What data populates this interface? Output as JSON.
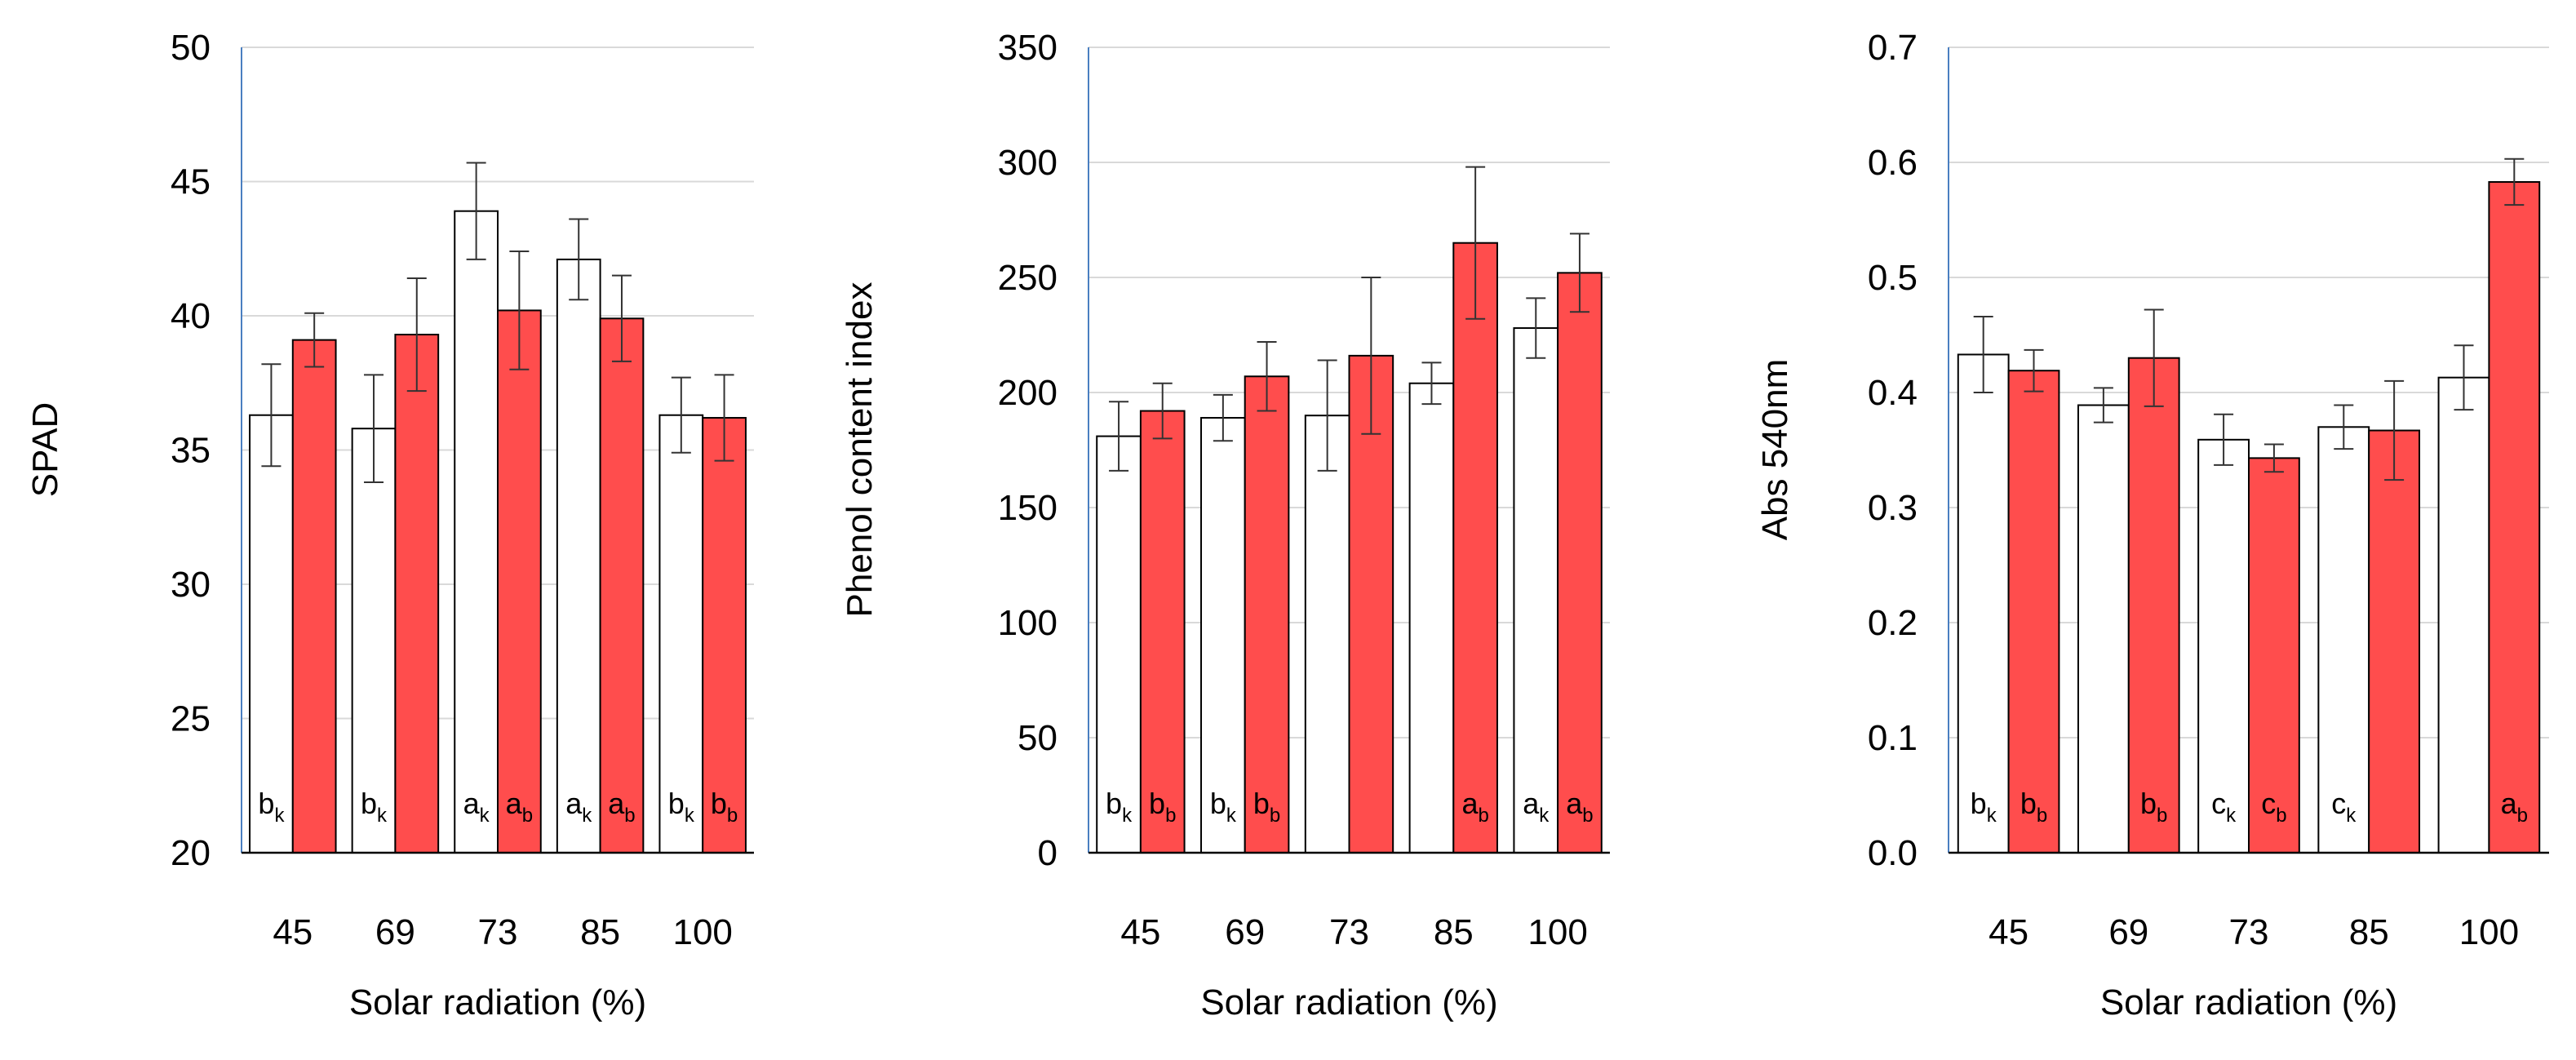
{
  "chart_data": [
    {
      "type": "bar",
      "title": "",
      "xlabel": "Solar radiation (%)",
      "ylabel": "SPAD",
      "ylim": [
        20,
        50
      ],
      "yticks": [
        "20",
        "25",
        "30",
        "35",
        "40",
        "45",
        "50"
      ],
      "grid": true,
      "categories": [
        "45",
        "69",
        "73",
        "85",
        "100"
      ],
      "series": [
        {
          "name": "white",
          "color": "#ffffff",
          "values": [
            36.3,
            35.8,
            43.9,
            42.1,
            36.3
          ],
          "errors": [
            1.9,
            2.0,
            1.8,
            1.5,
            1.4
          ],
          "letters": [
            [
              "b",
              "k"
            ],
            [
              "b",
              "k"
            ],
            [
              "a",
              "k"
            ],
            [
              "a",
              "k"
            ],
            [
              "b",
              "k"
            ]
          ]
        },
        {
          "name": "red",
          "color": "#ff4d4d",
          "values": [
            39.1,
            39.3,
            40.2,
            39.9,
            36.2
          ],
          "errors": [
            1.0,
            2.1,
            2.2,
            1.6,
            1.6
          ],
          "letters": [
            null,
            null,
            [
              "a",
              "b"
            ],
            [
              "a",
              "b"
            ],
            [
              "b",
              "b"
            ]
          ]
        }
      ]
    },
    {
      "type": "bar",
      "title": "",
      "xlabel": "Solar radiation (%)",
      "ylabel": "Phenol content index",
      "ylim": [
        0,
        350
      ],
      "yticks": [
        "0",
        "50",
        "100",
        "150",
        "200",
        "250",
        "300",
        "350"
      ],
      "grid": true,
      "categories": [
        "45",
        "69",
        "73",
        "85",
        "100"
      ],
      "series": [
        {
          "name": "white",
          "color": "#ffffff",
          "values": [
            181,
            189,
            190,
            204,
            228
          ],
          "errors": [
            15,
            10,
            24,
            9,
            13
          ],
          "letters": [
            [
              "b",
              "k"
            ],
            [
              "b",
              "k"
            ],
            null,
            null,
            [
              "a",
              "k"
            ]
          ]
        },
        {
          "name": "red",
          "color": "#ff4d4d",
          "values": [
            192,
            207,
            216,
            265,
            252
          ],
          "errors": [
            12,
            15,
            34,
            33,
            17
          ],
          "letters": [
            [
              "b",
              "b"
            ],
            [
              "b",
              "b"
            ],
            null,
            [
              "a",
              "b"
            ],
            [
              "a",
              "b"
            ]
          ]
        }
      ]
    },
    {
      "type": "bar",
      "title": "",
      "xlabel": "Solar radiation (%)",
      "ylabel": "Abs 540nm",
      "ylim": [
        0,
        0.7
      ],
      "yticks": [
        "0.0",
        "0.1",
        "0.2",
        "0.3",
        "0.4",
        "0.5",
        "0.6",
        "0.7"
      ],
      "grid": true,
      "categories": [
        "45",
        "69",
        "73",
        "85",
        "100"
      ],
      "series": [
        {
          "name": "white",
          "color": "#ffffff",
          "values": [
            0.433,
            0.389,
            0.359,
            0.37,
            0.413
          ],
          "errors": [
            0.033,
            0.015,
            0.022,
            0.019,
            0.028
          ],
          "letters": [
            [
              "b",
              "k"
            ],
            null,
            [
              "c",
              "k"
            ],
            [
              "c",
              "k"
            ],
            null
          ]
        },
        {
          "name": "red",
          "color": "#ff4d4d",
          "values": [
            0.419,
            0.43,
            0.343,
            0.367,
            0.583
          ],
          "errors": [
            0.018,
            0.042,
            0.012,
            0.043,
            0.02
          ],
          "letters": [
            [
              "b",
              "b"
            ],
            [
              "b",
              "b"
            ],
            [
              "c",
              "b"
            ],
            null,
            [
              "a",
              "b"
            ]
          ]
        }
      ]
    }
  ]
}
